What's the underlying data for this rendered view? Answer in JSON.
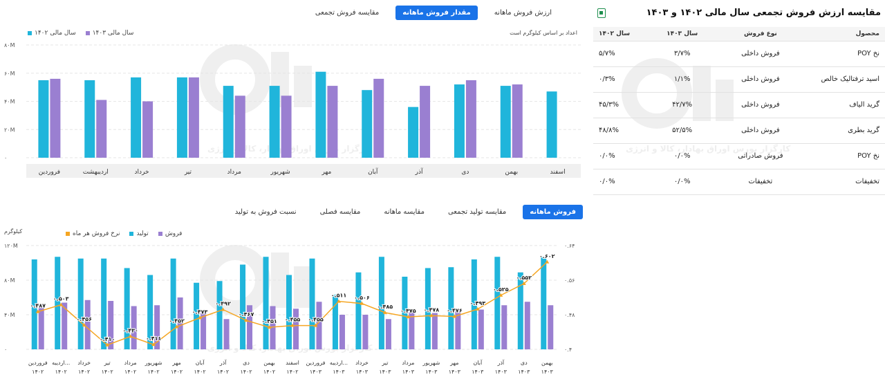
{
  "colors": {
    "cyan": "#20b5db",
    "purple": "#9a7fd1",
    "orange": "#f5a623",
    "accent": "#1a73e8"
  },
  "top_tabs": [
    {
      "label": "ارزش فروش ماهانه"
    },
    {
      "label": "مقدار فروش ماهانه"
    },
    {
      "label": "مقایسه فروش تجمعی"
    }
  ],
  "top_legend": {
    "s1403": "سال مالی ۱۴۰۳",
    "s1402": "سال مالی ۱۴۰۲"
  },
  "top_note": "اعداد بر اساس کیلوگرم است",
  "watermark": {
    "logo": "آگاه",
    "text": "کارگزار بورس اوراق بهادار، کالا و انرژی"
  },
  "right_panel": {
    "title": "مقایسه ارزش فروش تجمعی سال مالی ۱۴۰۲ و ۱۴۰۳",
    "icon": "excel-export-icon",
    "headers": {
      "product": "محصول",
      "type": "نوع فروش",
      "y1403": "سال ۱۴۰۳",
      "y1402": "سال ۱۴۰۲"
    },
    "rows": [
      {
        "product": "نخ POY",
        "type": "فروش داخلی",
        "y1403": "۳/۷%",
        "y1402": "۵/۷%"
      },
      {
        "product": "اسید ترفتالیک خالص",
        "type": "فروش داخلی",
        "y1403": "۱/۱%",
        "y1402": "۰/۳%"
      },
      {
        "product": "گرید الیاف",
        "type": "فروش داخلی",
        "y1403": "۴۲/۷%",
        "y1402": "۴۵/۳%"
      },
      {
        "product": "گرید بطری",
        "type": "فروش داخلی",
        "y1403": "۵۲/۵%",
        "y1402": "۴۸/۸%"
      },
      {
        "product": "نخ POY",
        "type": "فروش صادراتی",
        "y1403": "۰/۰%",
        "y1402": "۰/۰%"
      },
      {
        "product": "تخفیفات",
        "type": "تخفیفات",
        "y1403": "۰/۰%",
        "y1402": "۰/۰%"
      }
    ]
  },
  "bottom_tabs": [
    {
      "label": "فروش ماهانه"
    },
    {
      "label": "مقایسه تولید تجمعی"
    },
    {
      "label": "مقایسه ماهانه"
    },
    {
      "label": "مقایسه فصلی"
    },
    {
      "label": "نسبت فروش به تولید"
    }
  ],
  "bottom_legend": {
    "sales": "فروش",
    "production": "تولید",
    "rate": "نرخ فروش هر ماه"
  },
  "bottom_unit": "کیلوگرم",
  "chart_data": [
    {
      "type": "bar",
      "ylim": [
        0,
        80
      ],
      "y_ticks": [
        "۰",
        "۲۰M",
        "۴۰M",
        "۶۰M",
        "۸۰M"
      ],
      "y_tick_values": [
        0,
        20,
        40,
        60,
        80
      ],
      "categories": [
        "فروردین",
        "اردیبهشت",
        "خرداد",
        "تیر",
        "مرداد",
        "شهریور",
        "مهر",
        "آبان",
        "آذر",
        "دی",
        "بهمن",
        "اسفند"
      ],
      "series": [
        {
          "name": "سال مالی ۱۴۰۳",
          "color": "#9a7fd1",
          "values": [
            56,
            41,
            40,
            57,
            44,
            44,
            51,
            56,
            51,
            55,
            52,
            null
          ]
        },
        {
          "name": "سال مالی ۱۴۰۲",
          "color": "#20b5db",
          "values": [
            55,
            55,
            57,
            57,
            51,
            51,
            61,
            48,
            36,
            52,
            51,
            47
          ]
        }
      ]
    },
    {
      "type": "bar",
      "ylim": [
        0,
        120
      ],
      "y_ticks": [
        "۰",
        "۴۰M",
        "۸۰M",
        "۱۲۰M"
      ],
      "y_tick_values": [
        0,
        40,
        80,
        120
      ],
      "y2lim": [
        0.4,
        0.64
      ],
      "y2_ticks": [
        "۰.۴",
        "۰.۴۸",
        "۰.۵۶",
        "۰.۶۴"
      ],
      "y2_tick_values": [
        0.4,
        0.48,
        0.56,
        0.64
      ],
      "categories": [
        [
          "فروردین",
          "۱۴۰۲"
        ],
        [
          "اردیبه...",
          "۱۴۰۲"
        ],
        [
          "خرداد",
          "۱۴۰۲"
        ],
        [
          "تیر",
          "۱۴۰۲"
        ],
        [
          "مرداد",
          "۱۴۰۲"
        ],
        [
          "شهریور",
          "۱۴۰۲"
        ],
        [
          "مهر",
          "۱۴۰۲"
        ],
        [
          "آبان",
          "۱۴۰۲"
        ],
        [
          "آذر",
          "۱۴۰۲"
        ],
        [
          "دی",
          "۱۴۰۲"
        ],
        [
          "بهمن",
          "۱۴۰۲"
        ],
        [
          "اسفند",
          "۱۴۰۲"
        ],
        [
          "فروردین",
          "۱۴۰۳"
        ],
        [
          "اردیبه...",
          "۱۴۰۳"
        ],
        [
          "خرداد",
          "۱۴۰۳"
        ],
        [
          "تیر",
          "۱۴۰۳"
        ],
        [
          "مرداد",
          "۱۴۰۳"
        ],
        [
          "شهریور",
          "۱۴۰۳"
        ],
        [
          "مهر",
          "۱۴۰۳"
        ],
        [
          "آبان",
          "۱۴۰۳"
        ],
        [
          "آذر",
          "۱۴۰۳"
        ],
        [
          "دی",
          "۱۴۰۳"
        ],
        [
          "بهمن",
          "۱۴۰۳"
        ]
      ],
      "series": [
        {
          "name": "تولید",
          "color": "#20b5db",
          "values": [
            104,
            107,
            105,
            105,
            94,
            86,
            105,
            77,
            79,
            98,
            107,
            86,
            105,
            63,
            89,
            107,
            84,
            94,
            95,
            104,
            107,
            89,
            107
          ]
        },
        {
          "name": "فروش",
          "color": "#9a7fd1",
          "values": [
            52,
            54,
            57,
            56,
            50,
            51,
            60,
            42,
            35,
            51,
            50,
            47,
            55,
            40,
            40,
            35,
            43,
            42,
            44,
            46,
            51,
            55,
            51
          ]
        },
        {
          "name": "نرخ فروش هر ماه",
          "color": "#f5a623",
          "values": [
            0.487,
            0.503,
            0.456,
            0.41,
            0.43,
            0.411,
            0.452,
            0.473,
            0.492,
            0.467,
            0.451,
            0.455,
            0.455,
            0.511,
            0.506,
            0.485,
            0.475,
            0.478,
            0.476,
            0.493,
            0.525,
            0.552,
            0.602
          ]
        }
      ],
      "rate_labels": [
        "۰.۴۸۷",
        "۰.۵۰۳",
        "۰.۴۵۶",
        "۰.۴۱۰",
        "۰.۴۳۰",
        "۰.۴۱۱",
        "۰.۴۵۲",
        "۰.۴۷۳",
        "۰.۴۹۲",
        "۰.۴۶۷",
        "۰.۴۵۱",
        "۰.۴۵۵",
        "۰.۴۵۵",
        "۰.۵۱۱",
        "۰.۵۰۶",
        "۰.۴۸۵",
        "۰.۴۷۵",
        "۰.۴۷۸",
        "۰.۴۷۶",
        "۰.۴۹۳",
        "۰.۵۲۵",
        "۰.۵۵۲",
        "۰.۶۰۲"
      ]
    }
  ]
}
